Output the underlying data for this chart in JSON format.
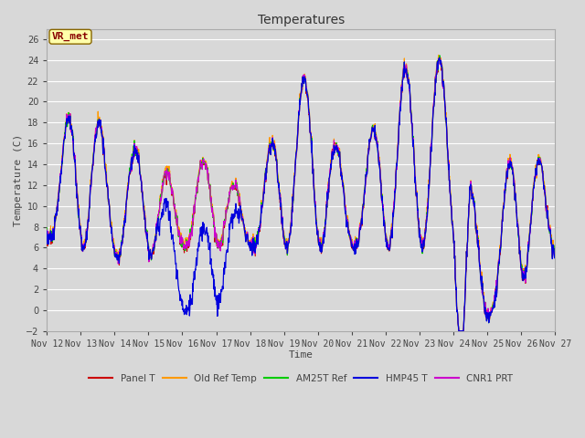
{
  "title": "Temperatures",
  "ylabel": "Temperature (C)",
  "xlabel": "Time",
  "annotation": "VR_met",
  "ylim": [
    -2,
    27
  ],
  "background_color": "#d8d8d8",
  "plot_bg_color": "#d8d8d8",
  "grid_color": "#ffffff",
  "series": {
    "Panel T": {
      "color": "#cc0000",
      "lw": 0.8
    },
    "Old Ref Temp": {
      "color": "#ff9900",
      "lw": 0.8
    },
    "AM25T Ref": {
      "color": "#00cc00",
      "lw": 0.8
    },
    "HMP45 T": {
      "color": "#0000dd",
      "lw": 0.9
    },
    "CNR1 PRT": {
      "color": "#cc00cc",
      "lw": 0.8
    }
  },
  "x_ticks": [
    "Nov 12",
    "Nov 13",
    "Nov 14",
    "Nov 15",
    "Nov 16",
    "Nov 17",
    "Nov 18",
    "Nov 19",
    "Nov 20",
    "Nov 21",
    "Nov 22",
    "Nov 23",
    "Nov 24",
    "Nov 25",
    "Nov 26",
    "Nov 27"
  ],
  "yticks": [
    -2,
    0,
    2,
    4,
    6,
    8,
    10,
    12,
    14,
    16,
    18,
    20,
    22,
    24,
    26
  ],
  "num_points": 1440,
  "days": 15
}
